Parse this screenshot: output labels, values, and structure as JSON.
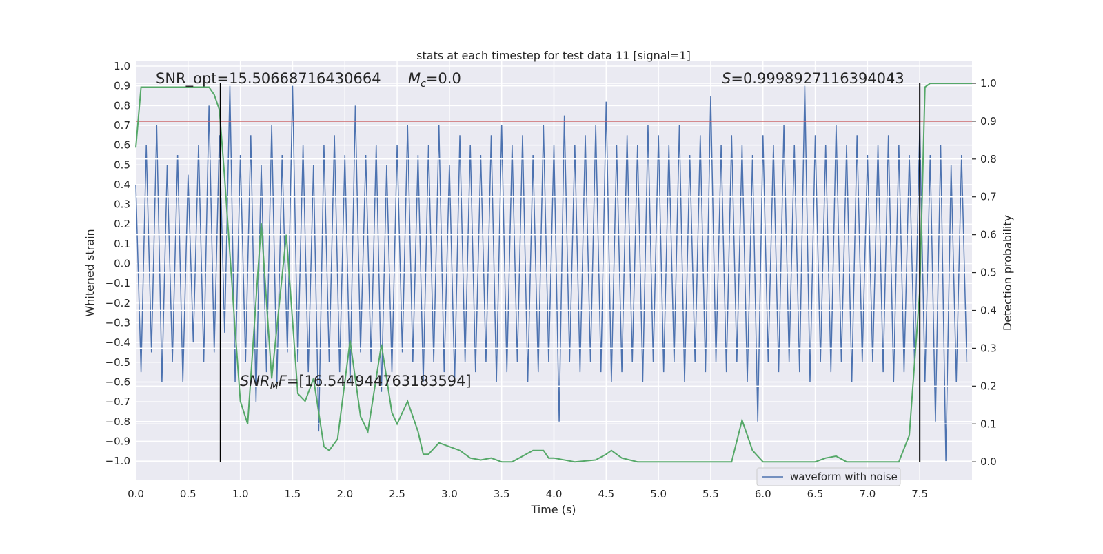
{
  "chart_data": {
    "type": "line",
    "title": "stats at each timestep for test data 11 [signal=1]",
    "xlabel": "Time (s)",
    "ylabel": "Whitened strain",
    "y2label": "Detection probability",
    "annotations": [
      [
        "SNR_opt=15.50668716430664"
      ],
      [
        "M",
        "c",
        "=0.0"
      ],
      [
        "S",
        "=0.9998927116394043"
      ],
      [
        "SNR",
        "M",
        "F",
        "=[16.544944763183594]"
      ]
    ],
    "xlim": [
      0,
      8
    ],
    "ylim": [
      -1.094,
      1.028
    ],
    "y2lim": [
      -0.047,
      1.06
    ],
    "xticks": [
      {
        "value": 0,
        "label": "0.0"
      },
      0.5,
      {
        "value": 1,
        "label": "1.0"
      },
      1.5,
      {
        "value": 2,
        "label": "2.0"
      },
      2.5,
      {
        "value": 3,
        "label": "3.0"
      },
      3.5,
      {
        "value": 4,
        "label": "4.0"
      },
      4.5,
      {
        "value": 5,
        "label": "5.0"
      },
      5.5,
      {
        "value": 6,
        "label": "6.0"
      },
      6.5,
      {
        "value": 7,
        "label": "7.0"
      },
      7.5
    ],
    "yticks": [
      {
        "value": -1,
        "label": "−1.0"
      },
      {
        "value": -0.9,
        "label": "−0.9"
      },
      {
        "value": -0.8,
        "label": "−0.8"
      },
      {
        "value": -0.7,
        "label": "−0.7"
      },
      {
        "value": -0.6,
        "label": "−0.6"
      },
      {
        "value": -0.5,
        "label": "−0.5"
      },
      {
        "value": -0.4,
        "label": "−0.4"
      },
      {
        "value": -0.3,
        "label": "−0.3"
      },
      {
        "value": -0.2,
        "label": "−0.2"
      },
      {
        "value": -0.1,
        "label": "−0.1"
      },
      {
        "value": 0,
        "label": "0.0"
      },
      0.1,
      0.2,
      0.3,
      0.4,
      0.5,
      0.6,
      0.7,
      0.8,
      0.9,
      {
        "value": 1,
        "label": "1.0"
      }
    ],
    "y2ticks": [
      {
        "value": 0,
        "label": "0.0"
      },
      0.1,
      0.2,
      0.3,
      0.4,
      0.5,
      0.6,
      0.7,
      0.8,
      0.9,
      {
        "value": 1,
        "label": "1.0"
      }
    ],
    "grid": true,
    "legend": "lower right",
    "series": [
      {
        "name": "waveform with noise",
        "color": "#4c72b0",
        "x": [
          0,
          0.05,
          0.1,
          0.15,
          0.2,
          0.25,
          0.3,
          0.35,
          0.4,
          0.45,
          0.5,
          0.55,
          0.6,
          0.65,
          0.7,
          0.75,
          0.8,
          0.85,
          0.9,
          0.95,
          1,
          1.05,
          1.1,
          1.15,
          1.2,
          1.25,
          1.3,
          1.35,
          1.4,
          1.45,
          1.5,
          1.55,
          1.6,
          1.65,
          1.7,
          1.75,
          1.8,
          1.85,
          1.9,
          1.95,
          2,
          2.05,
          2.1,
          2.15,
          2.2,
          2.25,
          2.3,
          2.35,
          2.4,
          2.45,
          2.5,
          2.55,
          2.6,
          2.65,
          2.7,
          2.75,
          2.8,
          2.85,
          2.9,
          2.95,
          3,
          3.05,
          3.1,
          3.15,
          3.2,
          3.25,
          3.3,
          3.35,
          3.4,
          3.45,
          3.5,
          3.55,
          3.6,
          3.65,
          3.7,
          3.75,
          3.8,
          3.85,
          3.9,
          3.95,
          4,
          4.05,
          4.1,
          4.15,
          4.2,
          4.25,
          4.3,
          4.35,
          4.4,
          4.45,
          4.5,
          4.55,
          4.6,
          4.65,
          4.7,
          4.75,
          4.8,
          4.85,
          4.9,
          4.95,
          5,
          5.05,
          5.1,
          5.15,
          5.2,
          5.25,
          5.3,
          5.35,
          5.4,
          5.45,
          5.5,
          5.55,
          5.6,
          5.65,
          5.7,
          5.75,
          5.8,
          5.85,
          5.9,
          5.95,
          6,
          6.05,
          6.1,
          6.15,
          6.2,
          6.25,
          6.3,
          6.35,
          6.4,
          6.45,
          6.5,
          6.55,
          6.6,
          6.65,
          6.7,
          6.75,
          6.8,
          6.85,
          6.9,
          6.95,
          7,
          7.05,
          7.1,
          7.15,
          7.2,
          7.25,
          7.3,
          7.35,
          7.4,
          7.45,
          7.5,
          7.55,
          7.6,
          7.65,
          7.7,
          7.75,
          7.8,
          7.85,
          7.9,
          7.95
        ],
        "values": [
          0.4,
          -0.55,
          0.6,
          -0.45,
          0.7,
          -0.6,
          0.5,
          -0.5,
          0.55,
          -0.6,
          0.45,
          -0.4,
          0.6,
          -0.5,
          0.8,
          -0.45,
          0.65,
          -0.35,
          0.9,
          -0.6,
          0.55,
          -0.5,
          0.65,
          -0.7,
          0.5,
          -0.55,
          0.7,
          -0.6,
          0.55,
          -0.45,
          0.9,
          -0.5,
          0.6,
          -0.55,
          0.5,
          -0.85,
          0.6,
          -0.5,
          0.65,
          -0.55,
          0.55,
          -0.6,
          0.8,
          -0.45,
          0.55,
          -0.5,
          0.6,
          -0.65,
          0.5,
          -0.55,
          0.6,
          -0.45,
          0.7,
          -0.5,
          0.55,
          -0.6,
          0.6,
          -0.5,
          0.7,
          -0.55,
          0.5,
          -0.6,
          0.65,
          -0.5,
          0.6,
          -0.55,
          0.55,
          -0.5,
          0.65,
          -0.6,
          0.7,
          -0.55,
          0.6,
          -0.5,
          0.65,
          -0.6,
          0.55,
          -0.55,
          0.7,
          -0.5,
          0.6,
          -0.8,
          0.75,
          -0.5,
          0.6,
          -0.55,
          0.65,
          -0.5,
          0.7,
          -0.55,
          0.82,
          -0.6,
          0.6,
          -0.55,
          0.65,
          -0.5,
          0.6,
          -0.6,
          0.7,
          -0.5,
          0.65,
          -0.55,
          0.6,
          -0.5,
          0.7,
          -0.6,
          0.55,
          -0.5,
          0.65,
          -0.55,
          0.85,
          -0.5,
          0.6,
          -0.55,
          0.65,
          -0.5,
          0.6,
          -0.6,
          0.55,
          -0.8,
          0.65,
          -0.5,
          0.6,
          -0.55,
          0.7,
          -0.5,
          0.6,
          -0.55,
          0.9,
          -0.6,
          0.65,
          -0.5,
          0.6,
          -0.55,
          0.7,
          -0.5,
          0.6,
          -0.6,
          0.65,
          -0.5,
          0.55,
          -0.5,
          0.6,
          -0.55,
          0.65,
          -0.6,
          0.6,
          -0.55,
          0.55,
          -0.5,
          0.7,
          -0.6,
          0.55,
          -0.8,
          0.6,
          -1.0,
          0.5,
          -0.6,
          0.55,
          -0.5
        ]
      },
      {
        "color": "#55a868",
        "axis": "y2",
        "x": [
          0,
          0.05,
          0.7,
          0.75,
          0.8,
          0.85,
          0.9,
          0.95,
          1,
          1.07,
          1.2,
          1.3,
          1.44,
          1.55,
          1.62,
          1.7,
          1.8,
          1.85,
          1.93,
          2.05,
          2.15,
          2.22,
          2.35,
          2.45,
          2.5,
          2.6,
          2.7,
          2.75,
          2.8,
          2.9,
          3,
          3.1,
          3.2,
          3.3,
          3.4,
          3.5,
          3.6,
          3.7,
          3.8,
          3.9,
          3.95,
          4,
          4.2,
          4.4,
          4.5,
          4.55,
          4.65,
          4.8,
          5,
          5.5,
          5.7,
          5.8,
          5.9,
          6,
          6.5,
          6.6,
          6.7,
          6.8,
          7.3,
          7.4,
          7.5,
          7.55,
          7.6,
          8
        ],
        "values": [
          0.83,
          0.99,
          0.99,
          0.97,
          0.93,
          0.75,
          0.55,
          0.35,
          0.16,
          0.1,
          0.63,
          0.22,
          0.6,
          0.18,
          0.16,
          0.22,
          0.04,
          0.03,
          0.06,
          0.32,
          0.12,
          0.08,
          0.31,
          0.13,
          0.1,
          0.16,
          0.08,
          0.02,
          0.02,
          0.05,
          0.04,
          0.03,
          0.01,
          0.005,
          0.01,
          0,
          0,
          0.015,
          0.03,
          0.03,
          0.01,
          0.01,
          0,
          0.005,
          0.02,
          0.03,
          0.01,
          0,
          0,
          0,
          0,
          0.11,
          0.03,
          0,
          0,
          0.01,
          0.015,
          0,
          0,
          0.07,
          0.45,
          0.99,
          1,
          1
        ]
      }
    ],
    "hlines": [
      {
        "y": 0.9,
        "axis": "y2",
        "color": "#c44e52"
      }
    ],
    "vlines": [
      {
        "x": 0.81,
        "ymin": 0,
        "ymax": 1,
        "axis": "y2",
        "color": "#000000"
      },
      {
        "x": 7.5,
        "ymin": 0,
        "ymax": 1,
        "axis": "y2",
        "color": "#000000"
      }
    ]
  }
}
